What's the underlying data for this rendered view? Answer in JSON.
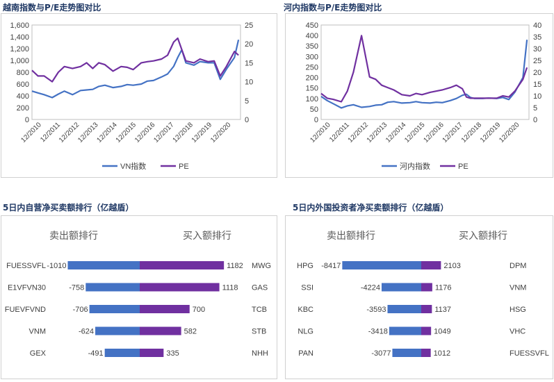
{
  "chart_data": [
    {
      "type": "line",
      "title": "越南指数与P/E走势图对比",
      "x_ticks": [
        "12/2010",
        "12/2011",
        "12/2012",
        "12/2013",
        "12/2014",
        "12/2015",
        "12/2016",
        "12/2017",
        "12/2018",
        "12/2019",
        "12/2020"
      ],
      "y_left": {
        "min": 0,
        "max": 1600,
        "ticks": [
          "0",
          "200",
          "400",
          "600",
          "800",
          "1,000",
          "1,200",
          "1,400",
          "1,600"
        ]
      },
      "y_right": {
        "min": 0,
        "max": 25,
        "ticks": [
          "0",
          "5",
          "10",
          "15",
          "20",
          "25"
        ]
      },
      "series": [
        {
          "name": "VN指数",
          "axis": "left",
          "color": "#4472c4",
          "x": [
            2010.9,
            2011.2,
            2011.5,
            2011.9,
            2012.2,
            2012.5,
            2012.9,
            2013.3,
            2013.6,
            2013.9,
            2014.2,
            2014.5,
            2014.9,
            2015.3,
            2015.6,
            2015.9,
            2016.3,
            2016.6,
            2016.9,
            2017.3,
            2017.6,
            2017.9,
            2018.1,
            2018.3,
            2018.5,
            2018.9,
            2019.2,
            2019.6,
            2019.9,
            2020.2,
            2020.5,
            2020.9,
            2021.1
          ],
          "y": [
            480,
            450,
            420,
            370,
            430,
            480,
            420,
            490,
            500,
            510,
            560,
            580,
            540,
            560,
            590,
            580,
            600,
            650,
            660,
            720,
            770,
            900,
            1050,
            1180,
            960,
            920,
            980,
            960,
            960,
            680,
            850,
            1050,
            1350
          ]
        },
        {
          "name": "PE",
          "axis": "right",
          "color": "#7030a0",
          "x": [
            2010.9,
            2011.2,
            2011.5,
            2011.9,
            2012.2,
            2012.5,
            2012.9,
            2013.3,
            2013.6,
            2013.9,
            2014.2,
            2014.5,
            2014.9,
            2015.3,
            2015.6,
            2015.9,
            2016.3,
            2016.6,
            2016.9,
            2017.3,
            2017.6,
            2017.9,
            2018.1,
            2018.3,
            2018.5,
            2018.9,
            2019.2,
            2019.6,
            2019.9,
            2020.2,
            2020.5,
            2020.9,
            2021.1
          ],
          "y": [
            13.0,
            11.5,
            11.5,
            10.0,
            12.5,
            14.0,
            13.5,
            14.0,
            15.0,
            13.5,
            15.0,
            14.5,
            12.8,
            14.0,
            13.8,
            13.2,
            15.0,
            15.3,
            15.5,
            16.0,
            17.0,
            20.5,
            21.5,
            18.5,
            15.5,
            15.0,
            16.0,
            15.3,
            15.5,
            11.5,
            14.0,
            18.0,
            17.0
          ]
        }
      ],
      "legend": "bottom"
    },
    {
      "type": "line",
      "title": "河内指数与P/E走势图对比",
      "x_ticks": [
        "12/2010",
        "12/2011",
        "12/2012",
        "12/2013",
        "12/2014",
        "12/2015",
        "12/2016",
        "12/2017",
        "12/2018",
        "12/2019",
        "12/2020"
      ],
      "y_left": {
        "min": 0,
        "max": 450,
        "ticks": [
          "0",
          "50",
          "100",
          "150",
          "200",
          "250",
          "300",
          "350",
          "400",
          "450"
        ]
      },
      "y_right": {
        "min": 0,
        "max": 40,
        "ticks": [
          "0",
          "5",
          "10",
          "15",
          "20",
          "25",
          "30",
          "35",
          "40"
        ]
      },
      "series": [
        {
          "name": "河内指数",
          "axis": "left",
          "color": "#4472c4",
          "x": [
            2010.9,
            2011.2,
            2011.5,
            2011.9,
            2012.2,
            2012.5,
            2012.9,
            2013.3,
            2013.6,
            2013.9,
            2014.2,
            2014.5,
            2014.9,
            2015.3,
            2015.6,
            2015.9,
            2016.3,
            2016.6,
            2016.9,
            2017.3,
            2017.6,
            2017.9,
            2018.1,
            2018.3,
            2018.5,
            2018.9,
            2019.2,
            2019.6,
            2019.9,
            2020.2,
            2020.5,
            2020.9,
            2021.1
          ],
          "y": [
            110,
            90,
            75,
            55,
            65,
            70,
            58,
            62,
            68,
            70,
            82,
            85,
            78,
            80,
            85,
            80,
            78,
            82,
            80,
            90,
            100,
            115,
            120,
            105,
            100,
            100,
            102,
            100,
            105,
            95,
            130,
            200,
            380
          ]
        },
        {
          "name": "PE",
          "axis": "right",
          "color": "#7030a0",
          "x": [
            2010.9,
            2011.2,
            2011.5,
            2011.9,
            2012.2,
            2012.5,
            2012.9,
            2013.3,
            2013.6,
            2013.9,
            2014.2,
            2014.5,
            2014.9,
            2015.3,
            2015.6,
            2015.9,
            2016.3,
            2016.6,
            2016.9,
            2017.3,
            2017.6,
            2017.9,
            2018.1,
            2018.3,
            2018.5,
            2018.9,
            2019.2,
            2019.6,
            2019.9,
            2020.2,
            2020.5,
            2020.9,
            2021.1
          ],
          "y": [
            11.0,
            9.0,
            8.5,
            7.5,
            12.0,
            20.0,
            35.5,
            18.0,
            17.0,
            14.5,
            13.5,
            12.5,
            10.5,
            10.0,
            11.0,
            10.5,
            11.5,
            12.0,
            12.5,
            13.5,
            14.5,
            13.0,
            9.5,
            9.0,
            9.0,
            9.0,
            9.0,
            9.0,
            10.0,
            9.5,
            12.0,
            17.0,
            22.0
          ]
        }
      ],
      "legend": "bottom"
    },
    {
      "type": "bar",
      "title": "5日内自营净买卖额排行（亿越盾）",
      "sell_header": "卖出额排行",
      "buy_header": "买入额排行",
      "sell": [
        {
          "name": "FUESSVFL",
          "value": -1010
        },
        {
          "name": "E1VFVN30",
          "value": -758
        },
        {
          "name": "FUEVFVND",
          "value": -706
        },
        {
          "name": "VNM",
          "value": -624
        },
        {
          "name": "GEX",
          "value": -491
        }
      ],
      "buy": [
        {
          "name": "MWG",
          "value": 1182
        },
        {
          "name": "GAS",
          "value": 1118
        },
        {
          "name": "TCB",
          "value": 700
        },
        {
          "name": "STB",
          "value": 582
        },
        {
          "name": "NHH",
          "value": 335
        }
      ],
      "sell_color": "#4472c4",
      "buy_color": "#7030a0"
    },
    {
      "type": "bar",
      "title": "5日内外国投资者净买卖额排行（亿越盾）",
      "sell_header": "卖出额排行",
      "buy_header": "买入额排行",
      "sell": [
        {
          "name": "HPG",
          "value": -8417
        },
        {
          "name": "SSI",
          "value": -4224
        },
        {
          "name": "KBC",
          "value": -3593
        },
        {
          "name": "NLG",
          "value": -3418
        },
        {
          "name": "PAN",
          "value": -3077
        }
      ],
      "buy": [
        {
          "name": "DPM",
          "value": 2103
        },
        {
          "name": "VNM",
          "value": 1176
        },
        {
          "name": "HSG",
          "value": 1137
        },
        {
          "name": "VHC",
          "value": 1049
        },
        {
          "name": "FUESSVFL",
          "value": 1012
        }
      ],
      "sell_color": "#4472c4",
      "buy_color": "#7030a0"
    }
  ]
}
